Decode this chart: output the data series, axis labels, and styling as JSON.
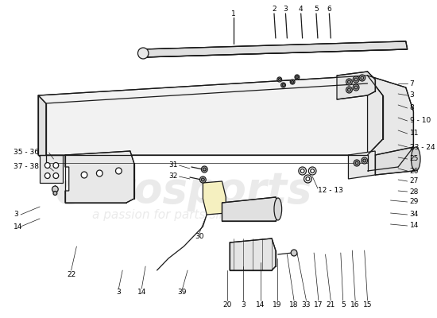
{
  "bg": "#ffffff",
  "lc": "#1a1a1a",
  "lw": 0.9,
  "fs": 6.5,
  "fig_w": 5.5,
  "fig_h": 4.0,
  "dpi": 100
}
